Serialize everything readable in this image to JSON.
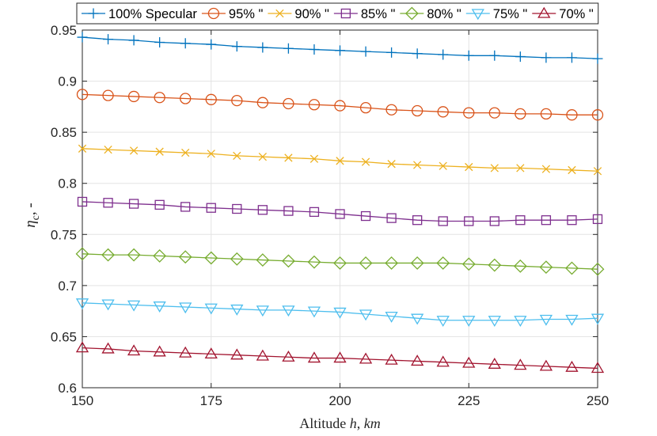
{
  "chart_data": {
    "type": "line",
    "title": "",
    "xlabel": "Altitude h, km",
    "xlabel_parts": {
      "prefix": "Altitude ",
      "var": "h",
      "sep": ", ",
      "unit": "km"
    },
    "ylabel": "ηc, -",
    "ylabel_parts": {
      "sym": "η",
      "sub": "c",
      "suffix": ", -"
    },
    "xlim": [
      150,
      250
    ],
    "ylim": [
      0.6,
      0.95
    ],
    "xticks": [
      150,
      175,
      200,
      225,
      250
    ],
    "xtick_labels": [
      "150",
      "175",
      "200",
      "225",
      "250"
    ],
    "yticks": [
      0.6,
      0.65,
      0.7,
      0.75,
      0.8,
      0.85,
      0.9,
      0.95
    ],
    "ytick_labels": [
      "0.6",
      "0.65",
      "0.7",
      "0.75",
      "0.8",
      "0.85",
      "0.9",
      "0.95"
    ],
    "grid": true,
    "legend_position": "top, horizontal, outside",
    "x": [
      150,
      155,
      160,
      165,
      170,
      175,
      180,
      185,
      190,
      195,
      200,
      205,
      210,
      215,
      220,
      225,
      230,
      235,
      240,
      245,
      250
    ],
    "series": [
      {
        "name": "100% Specular",
        "color": "#0072BD",
        "marker": "plus",
        "values": [
          0.943,
          0.941,
          0.94,
          0.938,
          0.937,
          0.936,
          0.934,
          0.933,
          0.932,
          0.931,
          0.93,
          0.929,
          0.928,
          0.927,
          0.926,
          0.925,
          0.925,
          0.924,
          0.923,
          0.923,
          0.922
        ]
      },
      {
        "name": "95% \"",
        "color": "#D95319",
        "marker": "circle",
        "values": [
          0.887,
          0.886,
          0.885,
          0.884,
          0.883,
          0.882,
          0.881,
          0.879,
          0.878,
          0.877,
          0.876,
          0.874,
          0.872,
          0.871,
          0.87,
          0.869,
          0.869,
          0.868,
          0.868,
          0.867,
          0.867
        ]
      },
      {
        "name": "90% \"",
        "color": "#EDB120",
        "marker": "x",
        "values": [
          0.834,
          0.833,
          0.832,
          0.831,
          0.83,
          0.829,
          0.827,
          0.826,
          0.825,
          0.824,
          0.822,
          0.821,
          0.819,
          0.818,
          0.817,
          0.816,
          0.815,
          0.815,
          0.814,
          0.813,
          0.812
        ]
      },
      {
        "name": "85% \"",
        "color": "#7E2F8E",
        "marker": "square",
        "values": [
          0.782,
          0.781,
          0.78,
          0.779,
          0.777,
          0.776,
          0.775,
          0.774,
          0.773,
          0.772,
          0.77,
          0.768,
          0.766,
          0.764,
          0.763,
          0.763,
          0.763,
          0.764,
          0.764,
          0.764,
          0.765
        ]
      },
      {
        "name": "80% \"",
        "color": "#77AC30",
        "marker": "diamond",
        "values": [
          0.731,
          0.73,
          0.73,
          0.729,
          0.728,
          0.727,
          0.726,
          0.725,
          0.724,
          0.723,
          0.722,
          0.722,
          0.722,
          0.722,
          0.722,
          0.721,
          0.72,
          0.719,
          0.718,
          0.717,
          0.716
        ]
      },
      {
        "name": "75% \"",
        "color": "#4DBEEE",
        "marker": "triangle-down",
        "values": [
          0.683,
          0.682,
          0.681,
          0.68,
          0.679,
          0.678,
          0.677,
          0.676,
          0.676,
          0.675,
          0.674,
          0.672,
          0.67,
          0.668,
          0.666,
          0.666,
          0.666,
          0.666,
          0.667,
          0.667,
          0.668
        ]
      },
      {
        "name": "70% \"",
        "color": "#A2142F",
        "marker": "triangle-up",
        "values": [
          0.639,
          0.638,
          0.636,
          0.635,
          0.634,
          0.633,
          0.632,
          0.631,
          0.63,
          0.629,
          0.629,
          0.628,
          0.627,
          0.626,
          0.625,
          0.624,
          0.623,
          0.622,
          0.621,
          0.62,
          0.619
        ]
      }
    ]
  }
}
